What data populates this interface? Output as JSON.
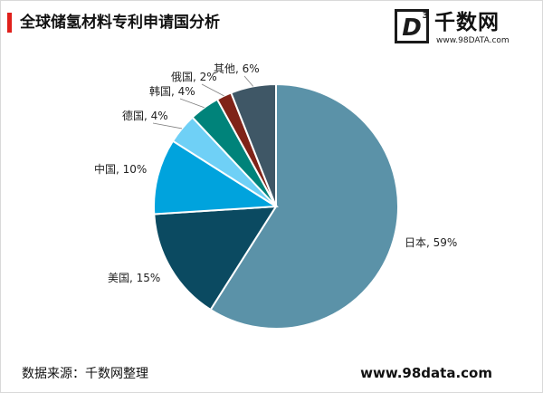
{
  "header": {
    "title": "全球储氢材料专利申请国分析"
  },
  "logo": {
    "mark_letter": "D",
    "mark_superscript": "3",
    "name": "千数网",
    "url": "www.98DATA.com"
  },
  "footer": {
    "source": "数据来源：千数网整理",
    "url": "www.98data.com"
  },
  "chart_data": {
    "type": "pie",
    "start": "12 o'clock, clockwise",
    "slices": [
      {
        "label": "日本, 59%",
        "value": 59,
        "color": "#5b92a8"
      },
      {
        "label": "美国, 15%",
        "value": 15,
        "color": "#0b4a61"
      },
      {
        "label": "中国, 10%",
        "value": 10,
        "color": "#00a3dd"
      },
      {
        "label": "德国, 4%",
        "value": 4,
        "color": "#6fd0f6"
      },
      {
        "label": "韩国, 4%",
        "value": 4,
        "color": "#00837a"
      },
      {
        "label": "俄国, 2%",
        "value": 2,
        "color": "#7f2318"
      },
      {
        "label": "其他, 6%",
        "value": 6,
        "color": "#3f5766"
      }
    ]
  }
}
